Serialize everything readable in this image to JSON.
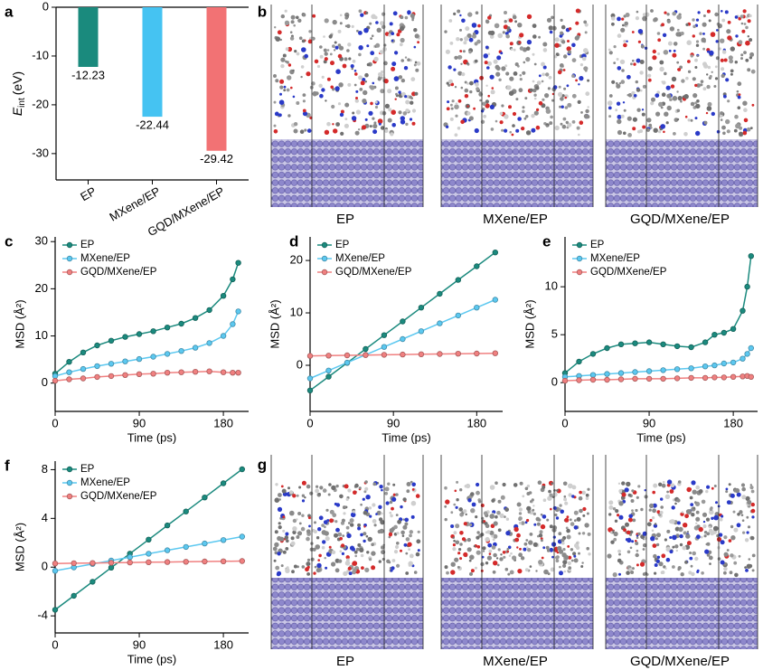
{
  "chart_data": [
    {
      "type": "bar",
      "label": "a",
      "ylabel": {
        "symbol": "E",
        "subscript": "int",
        "unit": "(eV)"
      },
      "categories": [
        "EP",
        "MXene/EP",
        "GQD/MXene/EP"
      ],
      "values": [
        -12.23,
        -22.44,
        -29.42
      ],
      "colors": [
        "#1a8a7d",
        "#45c3f2",
        "#f27274"
      ],
      "ylim": [
        -35.4,
        0
      ],
      "yticks": [
        0,
        -10,
        -20,
        -30
      ]
    },
    {
      "type": "line",
      "label": "c",
      "xlabel": "Time (ps)",
      "ylabel": "MSD (Å²)",
      "legend": "top-left",
      "x": [
        0,
        15,
        30,
        45,
        60,
        75,
        90,
        105,
        120,
        135,
        150,
        165,
        180,
        190,
        196
      ],
      "series": [
        {
          "name": "EP",
          "color": "#1b8a7e",
          "values": [
            2,
            4.5,
            6.5,
            8,
            9,
            9.8,
            10.4,
            11,
            11.8,
            12.6,
            13.8,
            15.5,
            18.5,
            22,
            25.5
          ]
        },
        {
          "name": "MXene/EP",
          "color": "#5cc8f0",
          "values": [
            1.5,
            2.3,
            3,
            3.6,
            4.1,
            4.6,
            5.1,
            5.6,
            6.2,
            6.8,
            7.5,
            8.5,
            10,
            12.5,
            15.2
          ]
        },
        {
          "name": "GQD/MXene/EP",
          "color": "#f08080",
          "values": [
            0.5,
            0.8,
            1,
            1.3,
            1.5,
            1.7,
            1.9,
            2,
            2.2,
            2.3,
            2.4,
            2.5,
            2.3,
            2.2,
            2.2
          ]
        }
      ],
      "xlim": [
        0,
        207
      ],
      "xticks": [
        0,
        90,
        180
      ],
      "ylim": [
        -6,
        31
      ],
      "yticks": [
        0,
        10,
        20,
        30
      ]
    },
    {
      "type": "line",
      "label": "d",
      "xlabel": "Time (ps)",
      "ylabel": "MSD (Å²)",
      "legend": "top-left",
      "x": [
        0,
        20,
        40,
        60,
        80,
        100,
        120,
        140,
        160,
        180,
        200
      ],
      "series": [
        {
          "name": "EP",
          "color": "#1b8a7e",
          "values": [
            -4.8,
            -2.17,
            0.47,
            3.1,
            5.74,
            8.37,
            11.0,
            13.64,
            16.28,
            18.9,
            21.54
          ]
        },
        {
          "name": "MXene/EP",
          "color": "#5cc8f0",
          "values": [
            -2.5,
            -1,
            0.5,
            2,
            3.5,
            5,
            6.5,
            8,
            9.5,
            11,
            12.5
          ]
        },
        {
          "name": "GQD/MXene/EP",
          "color": "#f08080",
          "values": [
            1.8,
            1.85,
            1.9,
            1.95,
            2,
            2.05,
            2.1,
            2.15,
            2.2,
            2.25,
            2.3
          ]
        }
      ],
      "xlim": [
        0,
        208
      ],
      "xticks": [
        0,
        90,
        180
      ],
      "ylim": [
        -8.8,
        24.5
      ],
      "yticks": [
        0,
        10,
        20
      ]
    },
    {
      "type": "line",
      "label": "e",
      "xlabel": "Time (ps)",
      "ylabel": "MSD (Å²)",
      "legend": "top-left",
      "x": [
        0,
        15,
        30,
        45,
        60,
        75,
        90,
        105,
        120,
        135,
        150,
        160,
        170,
        180,
        190,
        195,
        199
      ],
      "series": [
        {
          "name": "EP",
          "color": "#1b8a7e",
          "values": [
            1,
            2.2,
            3,
            3.6,
            4,
            4.1,
            4.2,
            4,
            3.8,
            3.7,
            4.2,
            5,
            5.2,
            5.6,
            7.5,
            10,
            13.2
          ]
        },
        {
          "name": "MXene/EP",
          "color": "#5cc8f0",
          "values": [
            0.6,
            0.7,
            0.8,
            0.9,
            1,
            1.1,
            1.2,
            1.3,
            1.4,
            1.5,
            1.7,
            1.8,
            2,
            2.1,
            2.5,
            3,
            3.6
          ]
        },
        {
          "name": "GQD/MXene/EP",
          "color": "#f08080",
          "values": [
            0.2,
            0.25,
            0.3,
            0.3,
            0.35,
            0.4,
            0.4,
            0.4,
            0.45,
            0.5,
            0.5,
            0.55,
            0.55,
            0.6,
            0.65,
            0.7,
            0.6
          ]
        }
      ],
      "xlim": [
        0,
        206
      ],
      "xticks": [
        0,
        90,
        180
      ],
      "ylim": [
        -3,
        15.2
      ],
      "yticks": [
        0,
        5,
        10
      ]
    },
    {
      "type": "line",
      "label": "f",
      "xlabel": "Time (ps)",
      "ylabel": "MSD (Å²)",
      "legend": "top-left",
      "x": [
        0,
        20,
        40,
        60,
        80,
        100,
        120,
        140,
        160,
        180,
        200
      ],
      "series": [
        {
          "name": "EP",
          "color": "#1b8a7e",
          "values": [
            -3.5,
            -2.35,
            -1.2,
            -0.04,
            1.11,
            2.26,
            3.42,
            4.57,
            5.72,
            6.88,
            8.03
          ]
        },
        {
          "name": "MXene/EP",
          "color": "#5cc8f0",
          "values": [
            -0.3,
            -0.02,
            0.26,
            0.54,
            0.82,
            1.1,
            1.38,
            1.66,
            1.94,
            2.22,
            2.5
          ]
        },
        {
          "name": "GQD/MXene/EP",
          "color": "#f08080",
          "values": [
            0.3,
            0.32,
            0.34,
            0.36,
            0.38,
            0.4,
            0.42,
            0.44,
            0.46,
            0.48,
            0.5
          ]
        }
      ],
      "xlim": [
        0,
        207
      ],
      "xticks": [
        0,
        90,
        180
      ],
      "ylim": [
        -5.4,
        8.7
      ],
      "yticks": [
        -4,
        0,
        4,
        8
      ]
    }
  ],
  "snapshots": [
    {
      "label": "b",
      "captions": [
        "EP",
        "MXene/EP",
        "GQD/MXene/EP"
      ]
    },
    {
      "label": "g",
      "captions": [
        "EP",
        "MXene/EP",
        "GQD/MXene/EP"
      ]
    }
  ]
}
